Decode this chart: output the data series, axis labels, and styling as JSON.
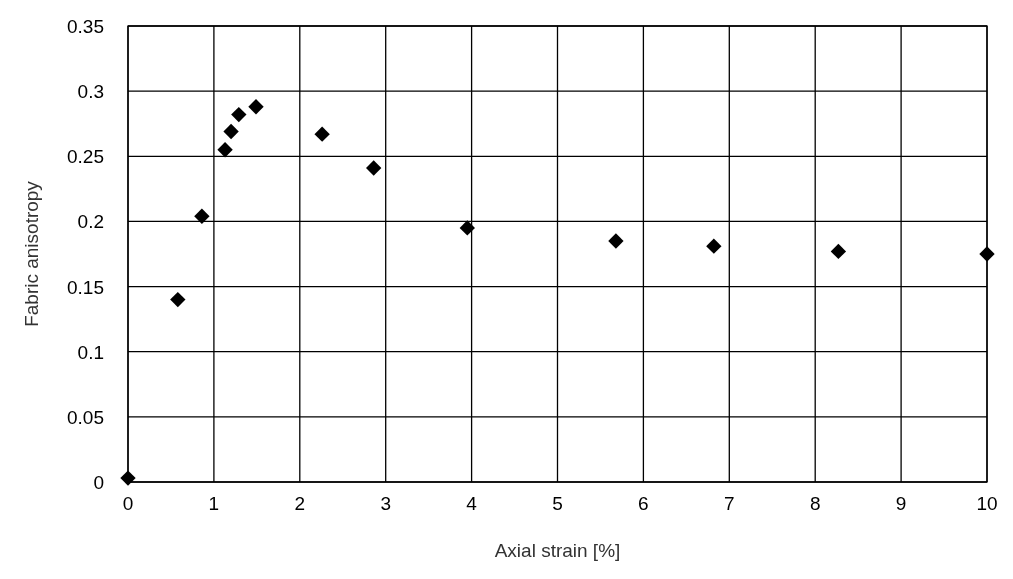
{
  "chart_data": {
    "type": "scatter",
    "xlabel": "Axial strain [%]",
    "ylabel": "Fabric anisotropy",
    "x": [
      0,
      0.58,
      0.86,
      1.13,
      1.2,
      1.29,
      1.49,
      2.26,
      2.86,
      3.95,
      5.68,
      6.82,
      8.27,
      10
    ],
    "values": [
      0.003,
      0.14,
      0.204,
      0.255,
      0.269,
      0.282,
      0.288,
      0.267,
      0.241,
      0.195,
      0.185,
      0.181,
      0.177,
      0.175
    ],
    "color": "#000000",
    "marker": "diamond",
    "grid": true,
    "xlim": [
      0,
      10
    ],
    "xticks": [
      0,
      1,
      2,
      3,
      4,
      5,
      6,
      7,
      8,
      9,
      10
    ],
    "ylim": [
      0,
      0.35
    ],
    "yticks": [
      0,
      0.05,
      0.1,
      0.15,
      0.2,
      0.25,
      0.3,
      0.35
    ]
  }
}
